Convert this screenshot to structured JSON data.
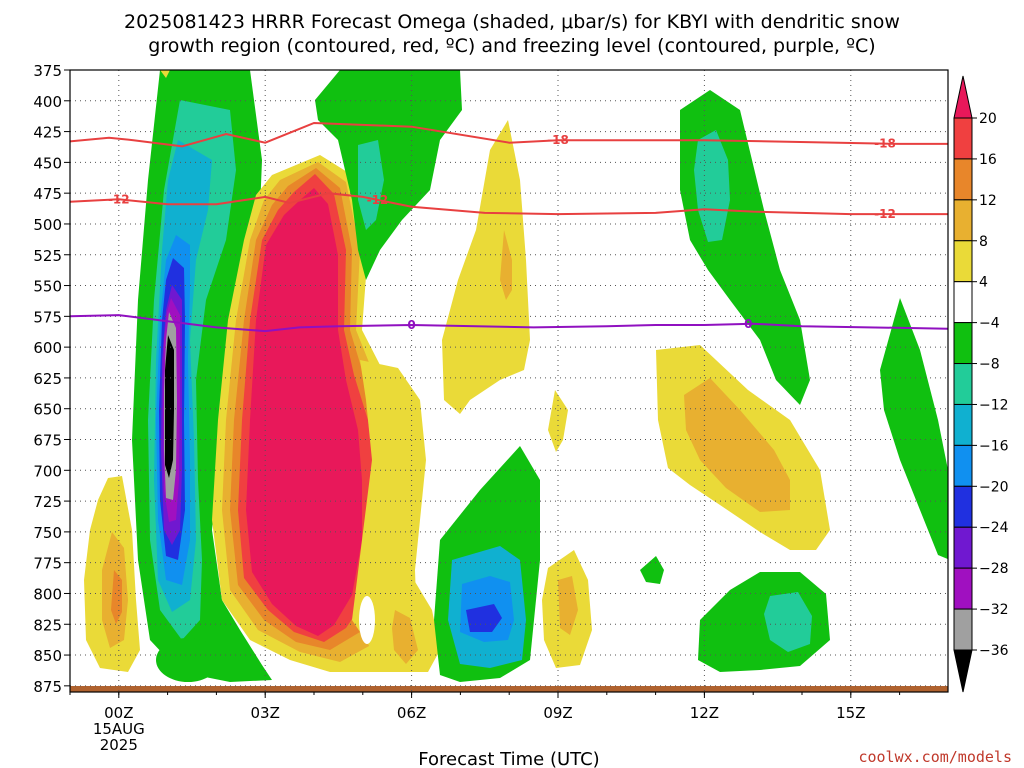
{
  "chart_data": {
    "type": "heatmap",
    "title_line1": "2025081423 HRRR Forecast Omega (shaded, μbar/s) for KBYI with dendritic snow",
    "title_line2": "growth region (contoured, red, ºC) and freezing level (contoured, purple, ºC)",
    "xlabel": "Forecast Time (UTC)",
    "credit": "coolwx.com/models",
    "x_hour_range": [
      -1,
      17
    ],
    "x_ticks": [
      {
        "hour": 0,
        "label": "00Z",
        "sub1": "15AUG",
        "sub2": "2025"
      },
      {
        "hour": 3,
        "label": "03Z"
      },
      {
        "hour": 6,
        "label": "06Z"
      },
      {
        "hour": 9,
        "label": "09Z"
      },
      {
        "hour": 12,
        "label": "12Z"
      },
      {
        "hour": 15,
        "label": "15Z"
      }
    ],
    "y_pressure_range": [
      375,
      880
    ],
    "y_ticks": [
      375,
      400,
      425,
      450,
      475,
      500,
      525,
      550,
      575,
      600,
      625,
      650,
      675,
      700,
      725,
      750,
      775,
      800,
      825,
      850,
      875
    ],
    "grid": true,
    "colorbar": {
      "labels": [
        20,
        16,
        12,
        8,
        4,
        -4,
        -8,
        -12,
        -16,
        -20,
        -24,
        -28,
        -32,
        -36
      ],
      "colors": [
        "#e8185a",
        "#f04040",
        "#e8862a",
        "#e8b030",
        "#eada38",
        "#ffffff",
        "#10c010",
        "#22cc99",
        "#10b0d0",
        "#1090f0",
        "#2030e0",
        "#7018d0",
        "#a010c0",
        "#a0a0a0",
        "#000000"
      ]
    },
    "contours": [
      {
        "color": "#e84040",
        "label": "-18",
        "points": [
          [
            -1,
            433
          ],
          [
            -0.2,
            430
          ],
          [
            0.3,
            432
          ],
          [
            1.3,
            437
          ],
          [
            2.2,
            427
          ],
          [
            3,
            434
          ],
          [
            4,
            418
          ],
          [
            6,
            421
          ],
          [
            8,
            434
          ],
          [
            9,
            432
          ],
          [
            12,
            432
          ],
          [
            16,
            435
          ],
          [
            17,
            435
          ]
        ],
        "label_hours": [
          9,
          15.7
        ]
      },
      {
        "color": "#e84040",
        "label": "-12",
        "points": [
          [
            -1,
            482
          ],
          [
            0,
            480
          ],
          [
            1,
            484
          ],
          [
            2,
            484
          ],
          [
            3,
            478
          ],
          [
            3.5,
            483
          ],
          [
            4.3,
            475
          ],
          [
            5,
            478
          ],
          [
            6,
            486
          ],
          [
            7.5,
            491
          ],
          [
            9,
            492
          ],
          [
            11,
            491
          ],
          [
            12,
            488
          ],
          [
            13,
            490
          ],
          [
            15,
            492
          ],
          [
            17,
            492
          ]
        ],
        "label_hours": [
          0,
          5.3,
          15.7
        ]
      },
      {
        "color": "#9010c0",
        "label": "0",
        "points": [
          [
            -1,
            575
          ],
          [
            0,
            574
          ],
          [
            1,
            579
          ],
          [
            2,
            584
          ],
          [
            3,
            587
          ],
          [
            3.7,
            584
          ],
          [
            4.5,
            583
          ],
          [
            6,
            582
          ],
          [
            8.5,
            584
          ],
          [
            10,
            583
          ],
          [
            11,
            582
          ],
          [
            12,
            582
          ],
          [
            13,
            581
          ],
          [
            14,
            583
          ],
          [
            17,
            585
          ]
        ],
        "label_hours": [
          6,
          12.9
        ]
      }
    ]
  }
}
